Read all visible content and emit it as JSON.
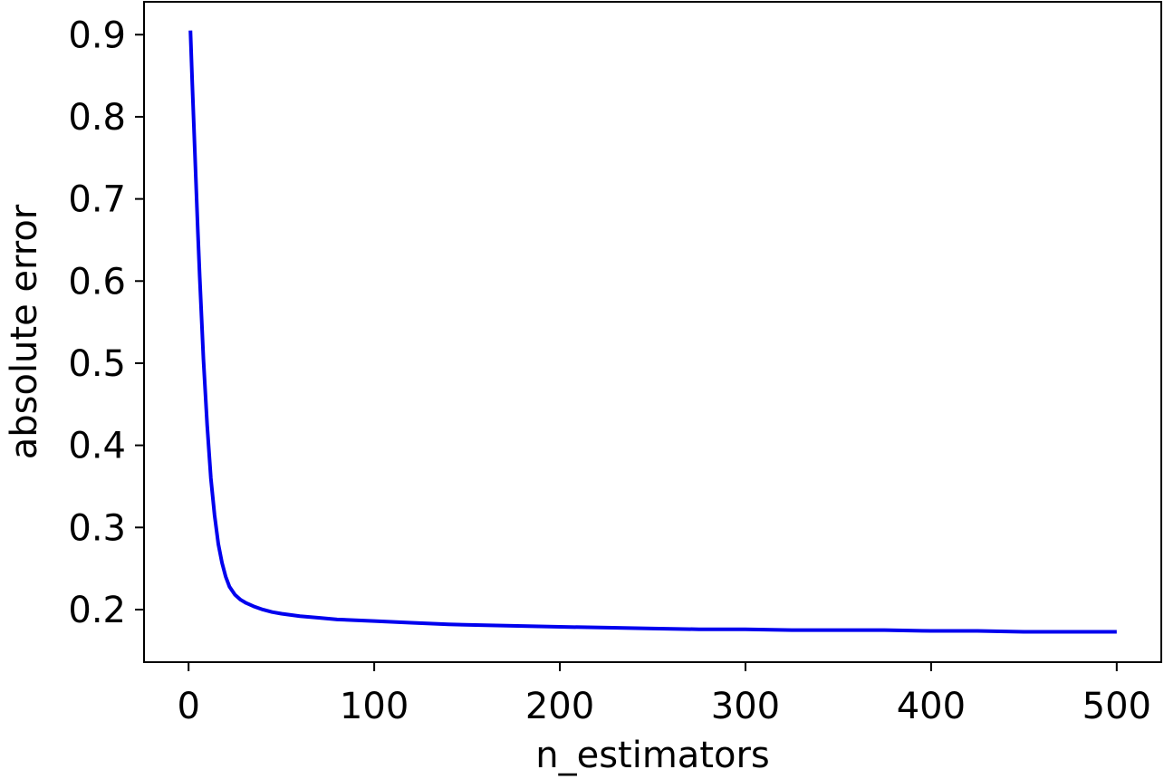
{
  "chart_data": {
    "type": "line",
    "title": "",
    "xlabel": "n_estimators",
    "ylabel": "absolute error",
    "xlim": [
      -24,
      524
    ],
    "ylim": [
      0.136,
      0.94
    ],
    "xticks": [
      0,
      100,
      200,
      300,
      400,
      500
    ],
    "xtick_labels": [
      "0",
      "100",
      "200",
      "300",
      "400",
      "500"
    ],
    "yticks": [
      0.2,
      0.3,
      0.4,
      0.5,
      0.6,
      0.7,
      0.8,
      0.9
    ],
    "ytick_labels": [
      "0.2",
      "0.3",
      "0.4",
      "0.5",
      "0.6",
      "0.7",
      "0.8",
      "0.9"
    ],
    "grid": false,
    "legend": "none",
    "series": [
      {
        "color": "#0000ee",
        "x": [
          1,
          2,
          3,
          4,
          5,
          6,
          7,
          8,
          9,
          10,
          12,
          14,
          16,
          18,
          20,
          22,
          25,
          28,
          31,
          35,
          40,
          45,
          50,
          60,
          70,
          80,
          90,
          100,
          120,
          140,
          160,
          180,
          200,
          225,
          250,
          275,
          300,
          325,
          350,
          375,
          400,
          425,
          450,
          475,
          500
        ],
        "y": [
          0.905,
          0.84,
          0.78,
          0.72,
          0.66,
          0.605,
          0.555,
          0.505,
          0.465,
          0.425,
          0.36,
          0.315,
          0.28,
          0.257,
          0.24,
          0.228,
          0.218,
          0.212,
          0.208,
          0.204,
          0.2,
          0.197,
          0.195,
          0.192,
          0.19,
          0.188,
          0.187,
          0.186,
          0.184,
          0.182,
          0.181,
          0.18,
          0.179,
          0.178,
          0.177,
          0.176,
          0.176,
          0.175,
          0.175,
          0.175,
          0.174,
          0.174,
          0.173,
          0.173,
          0.173
        ]
      }
    ]
  }
}
